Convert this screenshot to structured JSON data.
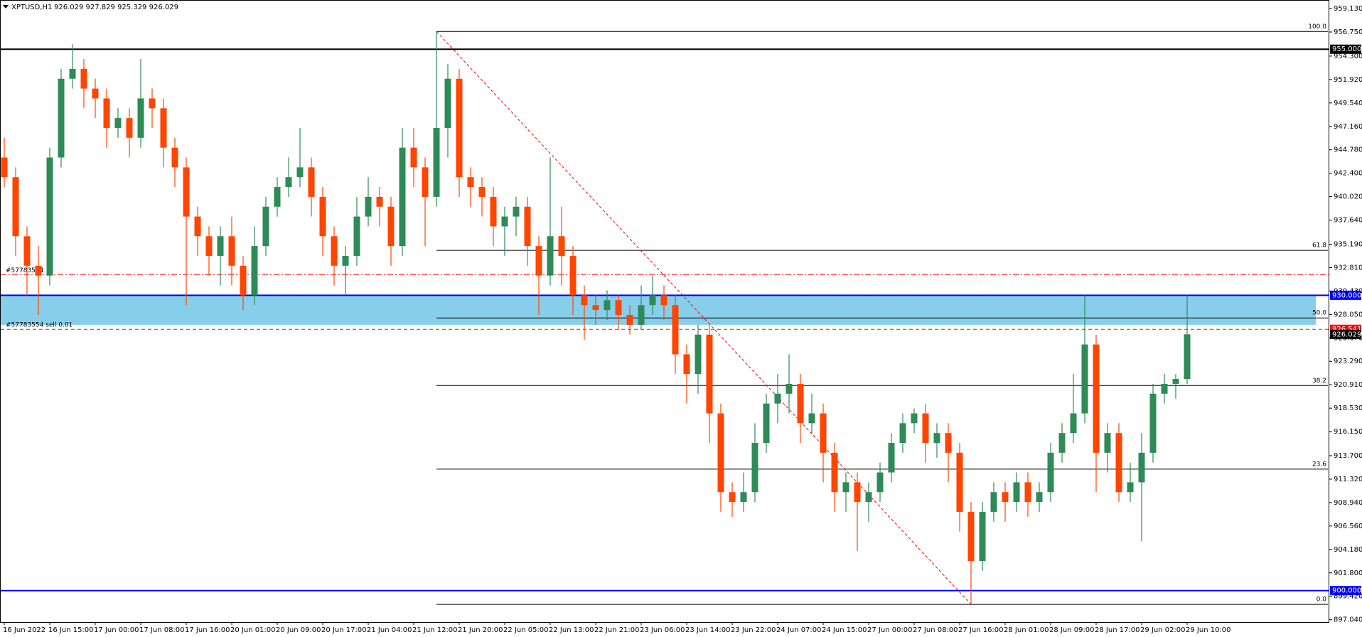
{
  "chart_data": {
    "type": "candlestick",
    "title": "XPTUSD,H1",
    "subtitle": "926.029 927.829 925.329 926.029",
    "categories": [
      "16 Jun 2022",
      null,
      null,
      null,
      "16 Jun 15:00",
      null,
      null,
      null,
      "17 Jun 00:00",
      null,
      null,
      null,
      "17 Jun 08:00",
      null,
      null,
      null,
      "17 Jun 16:00",
      null,
      null,
      null,
      "20 Jun 01:00",
      null,
      null,
      null,
      "20 Jun 09:00",
      null,
      null,
      null,
      "20 Jun 17:00",
      null,
      null,
      null,
      "21 Jun 04:00",
      null,
      null,
      null,
      "21 Jun 12:00",
      null,
      null,
      null,
      "21 Jun 20:00",
      null,
      null,
      null,
      "22 Jun 05:00",
      null,
      null,
      null,
      "22 Jun 13:00",
      null,
      null,
      null,
      "22 Jun 21:00",
      null,
      null,
      null,
      "23 Jun 06:00",
      null,
      null,
      null,
      "23 Jun 14:00",
      null,
      null,
      null,
      "23 Jun 22:00",
      null,
      null,
      null,
      "24 Jun 07:00",
      null,
      null,
      null,
      "24 Jun 15:00",
      null,
      null,
      null,
      "27 Jun 00:00",
      null,
      null,
      null,
      "27 Jun 08:00",
      null,
      null,
      null,
      "27 Jun 16:00",
      null,
      null,
      null,
      "28 Jun 01:00",
      null,
      null,
      null,
      "28 Jun 09:00",
      null,
      null,
      null,
      "28 Jun 17:00",
      null,
      null,
      null,
      "29 Jun 02:00",
      null,
      null,
      null,
      "29 Jun 10:00"
    ],
    "open": [
      944,
      942,
      936,
      933,
      932,
      944,
      952,
      953,
      951,
      950,
      947,
      948,
      946,
      950,
      949,
      945,
      943,
      938,
      936,
      934,
      936,
      933,
      930,
      935,
      939,
      941,
      942,
      943,
      940,
      936,
      933,
      934,
      938,
      940,
      939,
      935,
      945,
      943,
      940,
      947,
      952,
      942,
      941,
      940,
      937,
      938,
      939,
      935,
      932,
      936,
      934,
      930,
      929,
      928.5,
      929.5,
      928,
      927,
      929,
      930,
      929,
      924,
      922,
      926,
      918,
      910,
      909,
      910,
      915,
      919,
      920,
      921,
      917,
      918,
      914,
      910,
      911,
      909,
      910,
      912,
      915,
      917,
      918,
      915,
      916,
      914,
      908,
      903,
      908,
      910,
      909,
      911,
      909,
      910,
      914,
      916,
      918,
      925,
      914,
      916,
      910,
      911,
      914,
      920,
      921,
      921.5
    ],
    "high": [
      946,
      943,
      937,
      935,
      945,
      953,
      955.5,
      954,
      952,
      951,
      949,
      949,
      954,
      951,
      950,
      946,
      944,
      939,
      937,
      937,
      938,
      934,
      937,
      940,
      942,
      944,
      947,
      944,
      941,
      937,
      935,
      940,
      942,
      941,
      940,
      947,
      947,
      944,
      956.8,
      953.5,
      953,
      943,
      942,
      941,
      939,
      940,
      940,
      936,
      944,
      939,
      935,
      931,
      930,
      930.5,
      930,
      929,
      931,
      932,
      931,
      930,
      925,
      927,
      927,
      919,
      911,
      912,
      917,
      920,
      922,
      924,
      922,
      920,
      919,
      915,
      912,
      912,
      911,
      913,
      916,
      918,
      918.5,
      919,
      917,
      917,
      915,
      909,
      909,
      911,
      911,
      912,
      912,
      911,
      915,
      917,
      922,
      930,
      926,
      917,
      917,
      913,
      916,
      921,
      922,
      922,
      930
    ],
    "low": [
      941,
      934,
      930,
      928,
      931,
      943,
      951,
      949,
      948,
      945,
      946,
      944,
      945,
      947,
      943,
      941,
      929,
      934,
      932,
      931,
      931,
      928.5,
      929,
      934,
      938,
      940,
      941,
      938,
      934,
      931,
      930,
      933,
      937,
      937,
      933,
      934,
      941,
      935,
      939,
      944,
      940,
      939,
      938,
      935,
      934,
      936,
      933,
      928,
      931,
      931,
      928,
      925.5,
      927,
      927.5,
      926.5,
      926,
      926.5,
      928,
      927.5,
      922,
      919,
      920,
      915,
      908,
      907.5,
      908,
      909,
      914,
      917,
      918,
      915,
      916,
      911,
      908,
      908,
      904,
      907,
      909,
      911,
      914,
      916,
      913,
      913.5,
      911,
      906,
      898.6,
      902,
      907,
      907,
      908,
      907.5,
      908,
      909,
      913,
      915,
      917,
      910,
      912,
      909,
      909,
      905,
      913,
      919,
      919.5,
      921
    ],
    "close": [
      942,
      936,
      933,
      932,
      944,
      952,
      953,
      951,
      950,
      947,
      948,
      946,
      950,
      949,
      945,
      943,
      938,
      936,
      934,
      936,
      933,
      930,
      935,
      939,
      941,
      942,
      943,
      940,
      936,
      933,
      934,
      938,
      940,
      939,
      935,
      945,
      943,
      940,
      947,
      952,
      942,
      941,
      940,
      937,
      938,
      939,
      935,
      932,
      936,
      934,
      930,
      929,
      928.5,
      929.5,
      928,
      927,
      929,
      930,
      929,
      924,
      922,
      926,
      918,
      910,
      909,
      910,
      915,
      919,
      920,
      921,
      917,
      918,
      914,
      910,
      911,
      909,
      910,
      912,
      915,
      917,
      918,
      915,
      916,
      914,
      908,
      903,
      908,
      910,
      909,
      911,
      909,
      910,
      914,
      916,
      918,
      925,
      914,
      916,
      910,
      911,
      914,
      920,
      921,
      921.5,
      926.029
    ],
    "up_color": "#2e8b57",
    "down_color": "#ff4500",
    "ylim": [
      896.8,
      960.0
    ],
    "yticks": [
      {
        "value": 959.13,
        "label": "959.130"
      },
      {
        "value": 956.75,
        "label": "956.750"
      },
      {
        "value": 954.3,
        "label": "954.300"
      },
      {
        "value": 951.92,
        "label": "951.920"
      },
      {
        "value": 949.54,
        "label": "949.540"
      },
      {
        "value": 947.16,
        "label": "947.160"
      },
      {
        "value": 944.78,
        "label": "944.780"
      },
      {
        "value": 942.4,
        "label": "942.400"
      },
      {
        "value": 940.02,
        "label": "940.020"
      },
      {
        "value": 937.64,
        "label": "937.640"
      },
      {
        "value": 935.19,
        "label": "935.190"
      },
      {
        "value": 932.81,
        "label": "932.810"
      },
      {
        "value": 930.43,
        "label": "930.430"
      },
      {
        "value": 928.05,
        "label": "928.050"
      },
      {
        "value": 925.67,
        "label": "925.670"
      },
      {
        "value": 923.29,
        "label": "923.290"
      },
      {
        "value": 920.91,
        "label": "920.910"
      },
      {
        "value": 918.53,
        "label": "918.530"
      },
      {
        "value": 916.15,
        "label": "916.150"
      },
      {
        "value": 913.7,
        "label": "913.700"
      },
      {
        "value": 911.32,
        "label": "911.320"
      },
      {
        "value": 908.94,
        "label": "908.940"
      },
      {
        "value": 906.56,
        "label": "906.560"
      },
      {
        "value": 904.18,
        "label": "904.180"
      },
      {
        "value": 901.8,
        "label": "901.800"
      },
      {
        "value": 899.42,
        "label": "899.420"
      },
      {
        "value": 897.04,
        "label": "897.040"
      }
    ],
    "zone": {
      "from": 927.0,
      "to": 930.0,
      "color": "#87ceeb"
    },
    "hlines": [
      {
        "value": 955.0,
        "label": "955.000",
        "color": "#000000"
      },
      {
        "value": 930.0,
        "label": "930.000",
        "color": "#0000ff"
      },
      {
        "value": 900.0,
        "label": "900.000",
        "color": "#0000ff"
      }
    ],
    "orders": [
      {
        "value": 932.1,
        "label": "#57783554",
        "color": "#ff0000",
        "dash": "8 3 2 3"
      },
      {
        "value": 926.541,
        "label": "#57783554 sell 0.01",
        "price_label": "926.541",
        "color": "#ff0000",
        "line_color": "#555555",
        "dash": "5 4"
      }
    ],
    "price_line": {
      "value": 926.029,
      "label": "926.029",
      "color": "#000000"
    },
    "fibonacci": {
      "color": "#000000",
      "trend_color": "#ff0000",
      "levels": [
        {
          "label": "100.0",
          "value": 956.8
        },
        {
          "label": "61.8",
          "value": 934.57
        },
        {
          "label": "50.0",
          "value": 927.7
        },
        {
          "label": "38.2",
          "value": 920.83
        },
        {
          "label": "23.6",
          "value": 912.34
        },
        {
          "label": "0.0",
          "value": 898.6
        }
      ]
    }
  }
}
